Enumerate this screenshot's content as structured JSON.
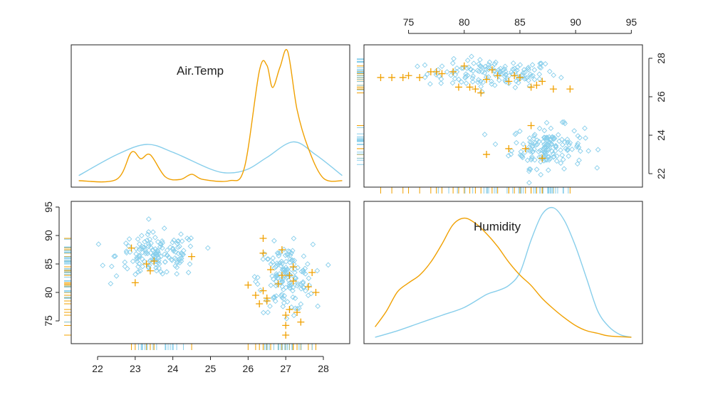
{
  "chart_data": {
    "type": "scatter-matrix",
    "variables": [
      "Air.Temp",
      "Humidity"
    ],
    "colors": {
      "group_a": "#87ceeb",
      "group_b": "#f0a000"
    },
    "groups": [
      {
        "name": "group_a",
        "marker": "diamond",
        "color": "#87ceeb"
      },
      {
        "name": "group_b",
        "marker": "plus",
        "color": "#f0a000"
      }
    ],
    "panels": [
      {
        "position": "top-left",
        "type": "density",
        "label": "Air.Temp",
        "xlim": [
          21.3,
          28.7
        ],
        "ylim": [
          0,
          1
        ],
        "series": [
          {
            "name": "group_a",
            "x": [
              21.5,
              22.5,
              23.3,
              24.0,
              25.0,
              25.5,
              26.0,
              26.5,
              27.2,
              27.8,
              28.5
            ],
            "y": [
              0.04,
              0.2,
              0.28,
              0.22,
              0.09,
              0.06,
              0.09,
              0.18,
              0.3,
              0.2,
              0.04
            ]
          },
          {
            "name": "group_b",
            "x": [
              21.5,
              22.5,
              22.9,
              23.15,
              23.4,
              23.8,
              24.2,
              24.5,
              24.8,
              25.5,
              25.9,
              26.3,
              26.5,
              26.65,
              26.85,
              27.05,
              27.3,
              27.6,
              28.0,
              28.5
            ],
            "y": [
              0.0,
              0.01,
              0.22,
              0.17,
              0.2,
              0.03,
              0.01,
              0.05,
              0.01,
              0.0,
              0.1,
              0.85,
              0.89,
              0.72,
              0.88,
              1.0,
              0.55,
              0.25,
              0.02,
              0.0
            ]
          }
        ]
      },
      {
        "position": "top-right",
        "type": "scatter",
        "xvar": "Humidity",
        "yvar": "Air.Temp",
        "xlim": [
          71,
          96
        ],
        "ylim": [
          21.3,
          28.7
        ],
        "xticks": [
          75,
          80,
          85,
          90,
          95
        ],
        "yticks": [
          22,
          24,
          26,
          28
        ],
        "xaxis_side": "top",
        "yaxis_side": "right",
        "clusters_group_a": [
          {
            "cx": 82.5,
            "cy": 27.2,
            "sx": 4.5,
            "sy": 0.55,
            "n": 140
          },
          {
            "cx": 87.5,
            "cy": 23.4,
            "sx": 2.5,
            "sy": 0.85,
            "n": 150
          }
        ],
        "group_b_points": [
          [
            72.5,
            27.0
          ],
          [
            73.5,
            27.0
          ],
          [
            74.5,
            27.0
          ],
          [
            75,
            27.1
          ],
          [
            76,
            27.0
          ],
          [
            77,
            27.3
          ],
          [
            77.5,
            27.3
          ],
          [
            78,
            27.2
          ],
          [
            79,
            27.3
          ],
          [
            79.5,
            26.5
          ],
          [
            80,
            27.6
          ],
          [
            80.5,
            26.5
          ],
          [
            81,
            26.4
          ],
          [
            81.5,
            26.2
          ],
          [
            82,
            26.9
          ],
          [
            82.5,
            27.4
          ],
          [
            83,
            27.1
          ],
          [
            84,
            26.8
          ],
          [
            84.5,
            27.1
          ],
          [
            85,
            27.0
          ],
          [
            86,
            26.5
          ],
          [
            86.5,
            26.6
          ],
          [
            87,
            26.8
          ],
          [
            88,
            26.4
          ],
          [
            89.5,
            26.4
          ],
          [
            82,
            23.0
          ],
          [
            84,
            23.3
          ],
          [
            85.5,
            23.3
          ],
          [
            86,
            24.5
          ],
          [
            87,
            22.8
          ]
        ]
      },
      {
        "position": "bottom-left",
        "type": "scatter",
        "xvar": "Air.Temp",
        "yvar": "Humidity",
        "xlim": [
          21.3,
          28.7
        ],
        "ylim": [
          71,
          96
        ],
        "xticks": [
          22,
          23,
          24,
          25,
          26,
          27,
          28
        ],
        "yticks": [
          75,
          80,
          85,
          90,
          95
        ],
        "xaxis_side": "bottom",
        "yaxis_side": "left",
        "clusters_group_a": [
          {
            "cx": 23.6,
            "cy": 86.5,
            "sx": 0.85,
            "sy": 3.0,
            "n": 150
          },
          {
            "cx": 27.0,
            "cy": 82.5,
            "sx": 0.55,
            "sy": 4.5,
            "n": 150
          }
        ],
        "group_b_points": [
          [
            22.9,
            87.8
          ],
          [
            23.0,
            81.7
          ],
          [
            23.3,
            85.0
          ],
          [
            23.4,
            83.8
          ],
          [
            23.5,
            85.5
          ],
          [
            24.5,
            86.3
          ],
          [
            26.0,
            81.3
          ],
          [
            26.2,
            79.5
          ],
          [
            26.3,
            78.0
          ],
          [
            26.4,
            80.3
          ],
          [
            26.4,
            86.9
          ],
          [
            26.5,
            79.0
          ],
          [
            26.5,
            78.5
          ],
          [
            26.6,
            84.0
          ],
          [
            26.8,
            81.5
          ],
          [
            26.9,
            83.0
          ],
          [
            27.0,
            76.0
          ],
          [
            27.0,
            74.2
          ],
          [
            27.0,
            72.5
          ],
          [
            27.1,
            77.0
          ],
          [
            27.1,
            83.0
          ],
          [
            27.2,
            84.5
          ],
          [
            27.3,
            76.5
          ],
          [
            27.4,
            74.8
          ],
          [
            27.6,
            81.0
          ],
          [
            27.7,
            83.5
          ],
          [
            27.8,
            80.0
          ],
          [
            26.9,
            87.5
          ],
          [
            26.4,
            89.5
          ],
          [
            27.2,
            82.0
          ]
        ]
      },
      {
        "position": "bottom-right",
        "type": "density",
        "label": "Humidity",
        "xlim": [
          71,
          96
        ],
        "ylim": [
          0,
          1
        ],
        "series": [
          {
            "name": "group_a",
            "x": [
              72,
              74,
              76,
              78,
              80,
              82,
              83,
              84,
              85,
              86,
              87,
              88,
              89,
              90,
              91,
              92,
              93,
              94,
              95
            ],
            "y": [
              0.0,
              0.05,
              0.11,
              0.17,
              0.23,
              0.33,
              0.36,
              0.4,
              0.5,
              0.75,
              0.95,
              1.0,
              0.9,
              0.7,
              0.45,
              0.2,
              0.08,
              0.02,
              0.0
            ]
          },
          {
            "name": "group_b",
            "x": [
              72,
              73,
              74,
              75,
              76,
              77,
              78,
              79,
              80,
              81,
              82,
              83,
              84,
              85,
              86,
              87,
              88,
              89,
              90,
              91,
              92,
              93,
              95
            ],
            "y": [
              0.08,
              0.2,
              0.35,
              0.42,
              0.48,
              0.58,
              0.72,
              0.87,
              0.92,
              0.88,
              0.8,
              0.7,
              0.58,
              0.48,
              0.4,
              0.3,
              0.22,
              0.15,
              0.09,
              0.05,
              0.03,
              0.01,
              0.0
            ]
          }
        ]
      }
    ]
  }
}
